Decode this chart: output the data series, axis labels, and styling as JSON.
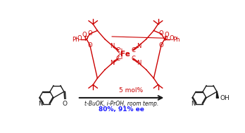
{
  "bg": "#ffffff",
  "red": "#cc0000",
  "blue": "#1a1aff",
  "black": "#1a1a1a",
  "catalyst": "5 mol%",
  "conditions": "t-BuOK, i-PrOH, room temp.",
  "yield": "80%, 91% ee",
  "fig_w": 3.48,
  "fig_h": 1.89,
  "dpi": 100
}
